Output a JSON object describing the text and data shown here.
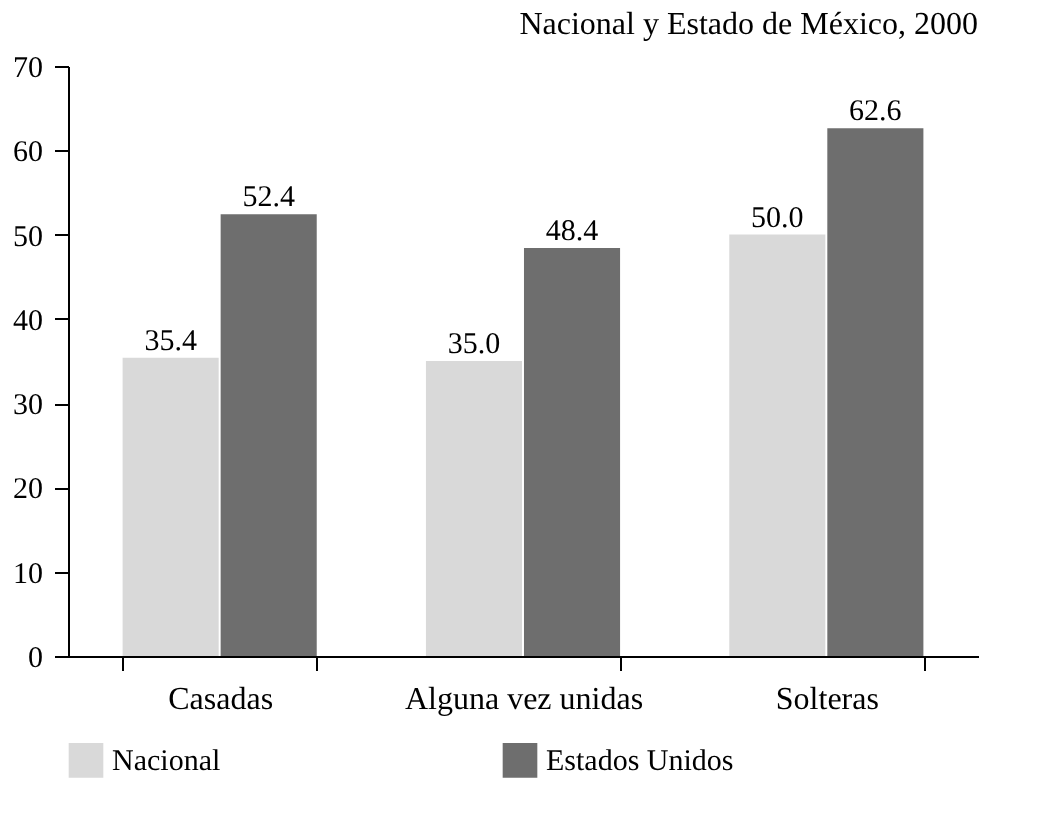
{
  "chart_data": {
    "type": "bar",
    "title": "Nacional y Estado de México, 2000",
    "categories": [
      "Casadas",
      "Alguna vez unidas",
      "Solteras"
    ],
    "series": [
      {
        "name": "Nacional",
        "color": "#d9d9d9",
        "values": [
          35.4,
          35.0,
          50.0
        ],
        "value_labels": [
          "35.4",
          "35.0",
          "50.0"
        ]
      },
      {
        "name": "Estados Unidos",
        "color": "#6e6e6e",
        "values": [
          52.4,
          48.4,
          62.6
        ],
        "value_labels": [
          "52.4",
          "48.4",
          "62.6"
        ]
      }
    ],
    "ylim": [
      0,
      70
    ],
    "yticks": [
      0,
      10,
      20,
      30,
      40,
      50,
      60,
      70
    ],
    "legend": "bottom"
  }
}
